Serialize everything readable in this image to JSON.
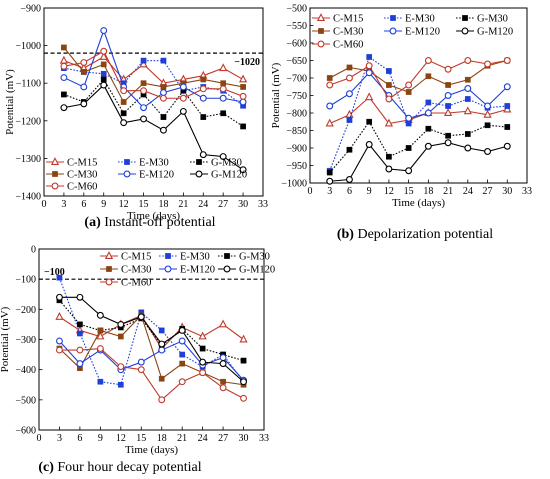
{
  "chart_data": [
    {
      "type": "line",
      "panel": "a",
      "caption_letter": "(a)",
      "caption_text": "Instant-off potential",
      "xlabel": "Time (days)",
      "ylabel": "Potential (mV)",
      "xlim": [
        0,
        33
      ],
      "ylim": [
        -1400,
        -900
      ],
      "xticks": [
        0,
        3,
        6,
        9,
        12,
        15,
        18,
        21,
        24,
        27,
        30,
        33
      ],
      "yticks": [
        -900,
        -1000,
        -1100,
        -1200,
        -1300,
        -1400
      ],
      "reference": {
        "value": -1020,
        "label": "−1020"
      },
      "legend_position": "bottom-left",
      "series": [
        {
          "name": "C-M15",
          "color": "#c0392b",
          "marker": "tri-open",
          "x": [
            3,
            6,
            9,
            12,
            15,
            18,
            21,
            24,
            27,
            30
          ],
          "values": [
            -1040,
            -1060,
            -1030,
            -1090,
            -1050,
            -1100,
            -1090,
            -1080,
            -1060,
            -1090
          ]
        },
        {
          "name": "E-M30",
          "color": "#1f3fd8",
          "marker": "sq-fill-dot",
          "x": [
            3,
            6,
            9,
            12,
            15,
            18,
            21,
            24,
            27,
            30
          ],
          "values": [
            -1060,
            -1070,
            -1075,
            -1100,
            -1040,
            -1040,
            -1120,
            -1110,
            -1120,
            -1160
          ]
        },
        {
          "name": "G-M30",
          "color": "#000000",
          "marker": "sq-fill-dot",
          "x": [
            3,
            6,
            9,
            12,
            15,
            18,
            21,
            24,
            27,
            30
          ],
          "values": [
            -1130,
            -1150,
            -1090,
            -1180,
            -1130,
            -1190,
            -1120,
            -1190,
            -1180,
            -1215
          ]
        },
        {
          "name": "C-M30",
          "color": "#8b4513",
          "marker": "sq-fill",
          "x": [
            3,
            6,
            9,
            12,
            15,
            18,
            21,
            24,
            27,
            30
          ],
          "values": [
            -1005,
            -1070,
            -1050,
            -1150,
            -1100,
            -1110,
            -1100,
            -1090,
            -1100,
            -1110
          ]
        },
        {
          "name": "E-M120",
          "color": "#1f3fd8",
          "marker": "circ-open",
          "x": [
            3,
            6,
            9,
            12,
            15,
            18,
            21,
            24,
            27,
            30
          ],
          "values": [
            -1085,
            -1110,
            -960,
            -1110,
            -1165,
            -1125,
            -1110,
            -1140,
            -1140,
            -1150
          ]
        },
        {
          "name": "G-M120",
          "color": "#000000",
          "marker": "circ-open",
          "x": [
            3,
            6,
            9,
            12,
            15,
            18,
            21,
            24,
            27,
            30
          ],
          "values": [
            -1165,
            -1155,
            -1105,
            -1205,
            -1195,
            -1225,
            -1175,
            -1290,
            -1295,
            -1330
          ]
        },
        {
          "name": "C-M60",
          "color": "#c0392b",
          "marker": "circ-open",
          "x": [
            3,
            6,
            9,
            12,
            15,
            18,
            21,
            24,
            27,
            30
          ],
          "values": [
            -1055,
            -1045,
            -1015,
            -1120,
            -1120,
            -1140,
            -1140,
            -1115,
            -1115,
            -1135
          ]
        }
      ]
    },
    {
      "type": "line",
      "panel": "b",
      "caption_letter": "(b)",
      "caption_text": "Depolarization potential",
      "xlabel": "Time (days)",
      "ylabel": "Potential (mV)",
      "xlim": [
        0,
        33
      ],
      "ylim": [
        -1000,
        -500
      ],
      "xticks": [
        0,
        3,
        6,
        9,
        12,
        15,
        18,
        21,
        24,
        27,
        30,
        33
      ],
      "yticks": [
        -500,
        -550,
        -600,
        -650,
        -700,
        -750,
        -800,
        -850,
        -900,
        -950,
        -1000
      ],
      "legend_position": "top",
      "series": [
        {
          "name": "C-M15",
          "color": "#c0392b",
          "marker": "tri-open",
          "x": [
            3,
            6,
            9,
            12,
            15,
            18,
            21,
            24,
            27,
            30
          ],
          "values": [
            -830,
            -805,
            -755,
            -830,
            -820,
            -800,
            -800,
            -795,
            -805,
            -790
          ]
        },
        {
          "name": "E-M30",
          "color": "#1f3fd8",
          "marker": "sq-fill-dot",
          "x": [
            3,
            6,
            9,
            12,
            15,
            18,
            21,
            24,
            27,
            30
          ],
          "values": [
            -965,
            -820,
            -640,
            -680,
            -830,
            -770,
            -780,
            -760,
            -785,
            -780
          ]
        },
        {
          "name": "G-M30",
          "color": "#000000",
          "marker": "sq-fill-dot",
          "x": [
            3,
            6,
            9,
            12,
            15,
            18,
            21,
            24,
            27,
            30
          ],
          "values": [
            -970,
            -905,
            -825,
            -925,
            -900,
            -845,
            -865,
            -860,
            -835,
            -840
          ]
        },
        {
          "name": "C-M30",
          "color": "#8b4513",
          "marker": "sq-fill",
          "x": [
            3,
            6,
            9,
            12,
            15,
            18,
            21,
            24,
            27,
            30
          ],
          "values": [
            -700,
            -670,
            -680,
            -720,
            -740,
            -695,
            -720,
            -705,
            -665,
            -650
          ]
        },
        {
          "name": "E-M120",
          "color": "#1f3fd8",
          "marker": "circ-open",
          "x": [
            3,
            6,
            9,
            12,
            15,
            18,
            21,
            24,
            27,
            30
          ],
          "values": [
            -780,
            -745,
            -685,
            -750,
            -815,
            -800,
            -750,
            -730,
            -780,
            -725
          ]
        },
        {
          "name": "G-M120",
          "color": "#000000",
          "marker": "circ-open",
          "x": [
            3,
            6,
            9,
            12,
            15,
            18,
            21,
            24,
            27,
            30
          ],
          "values": [
            -995,
            -990,
            -890,
            -960,
            -965,
            -895,
            -885,
            -900,
            -910,
            -895
          ]
        },
        {
          "name": "C-M60",
          "color": "#c0392b",
          "marker": "circ-open",
          "x": [
            3,
            6,
            9,
            12,
            15,
            18,
            21,
            24,
            27,
            30
          ],
          "values": [
            -720,
            -700,
            -665,
            -760,
            -720,
            -650,
            -675,
            -650,
            -660,
            -650
          ]
        }
      ]
    },
    {
      "type": "line",
      "panel": "c",
      "caption_letter": "(c)",
      "caption_text": "Four hour decay potential",
      "xlabel": "Time (days)",
      "ylabel": "Potential (mV)",
      "xlim": [
        0,
        33
      ],
      "ylim": [
        -600,
        0
      ],
      "xticks": [
        0,
        3,
        6,
        9,
        12,
        15,
        18,
        21,
        24,
        27,
        30,
        33
      ],
      "yticks": [
        0,
        -100,
        -200,
        -300,
        -400,
        -500,
        -600
      ],
      "reference": {
        "value": -100,
        "label": "−100"
      },
      "legend_position": "top",
      "series": [
        {
          "name": "C-M15",
          "color": "#c0392b",
          "marker": "tri-open",
          "x": [
            3,
            6,
            9,
            12,
            15,
            18,
            21,
            24,
            27,
            30
          ],
          "values": [
            -225,
            -270,
            -290,
            -250,
            -220,
            -330,
            -260,
            -290,
            -250,
            -300
          ]
        },
        {
          "name": "E-M30",
          "color": "#1f3fd8",
          "marker": "sq-fill-dot",
          "x": [
            3,
            6,
            9,
            12,
            15,
            18,
            21,
            24,
            27,
            30
          ],
          "values": [
            -95,
            -280,
            -440,
            -450,
            -210,
            -270,
            -350,
            -390,
            -350,
            -440
          ]
        },
        {
          "name": "G-M30",
          "color": "#000000",
          "marker": "sq-fill-dot",
          "x": [
            3,
            6,
            9,
            12,
            15,
            18,
            21,
            24,
            27,
            30
          ],
          "values": [
            -170,
            -250,
            -270,
            -260,
            -230,
            -320,
            -265,
            -330,
            -350,
            -370
          ]
        },
        {
          "name": "C-M30",
          "color": "#8b4513",
          "marker": "sq-fill",
          "x": [
            3,
            6,
            9,
            12,
            15,
            18,
            21,
            24,
            27,
            30
          ],
          "values": [
            -330,
            -395,
            -270,
            -290,
            -220,
            -430,
            -380,
            -410,
            -440,
            -450
          ]
        },
        {
          "name": "E-M120",
          "color": "#1f3fd8",
          "marker": "circ-open",
          "x": [
            3,
            6,
            9,
            12,
            15,
            18,
            21,
            24,
            27,
            30
          ],
          "values": [
            -305,
            -380,
            -335,
            -400,
            -375,
            -335,
            -305,
            -385,
            -360,
            -435
          ]
        },
        {
          "name": "G-M120",
          "color": "#000000",
          "marker": "circ-open",
          "x": [
            3,
            6,
            9,
            12,
            15,
            18,
            21,
            24,
            27,
            30
          ],
          "values": [
            -160,
            -160,
            -220,
            -250,
            -225,
            -315,
            -270,
            -375,
            -380,
            -440
          ]
        },
        {
          "name": "C-M60",
          "color": "#c0392b",
          "marker": "circ-open",
          "x": [
            3,
            6,
            9,
            12,
            15,
            18,
            21,
            24,
            27,
            30
          ],
          "values": [
            -335,
            -335,
            -330,
            -390,
            -400,
            -500,
            -440,
            -410,
            -460,
            -495
          ]
        }
      ]
    }
  ]
}
